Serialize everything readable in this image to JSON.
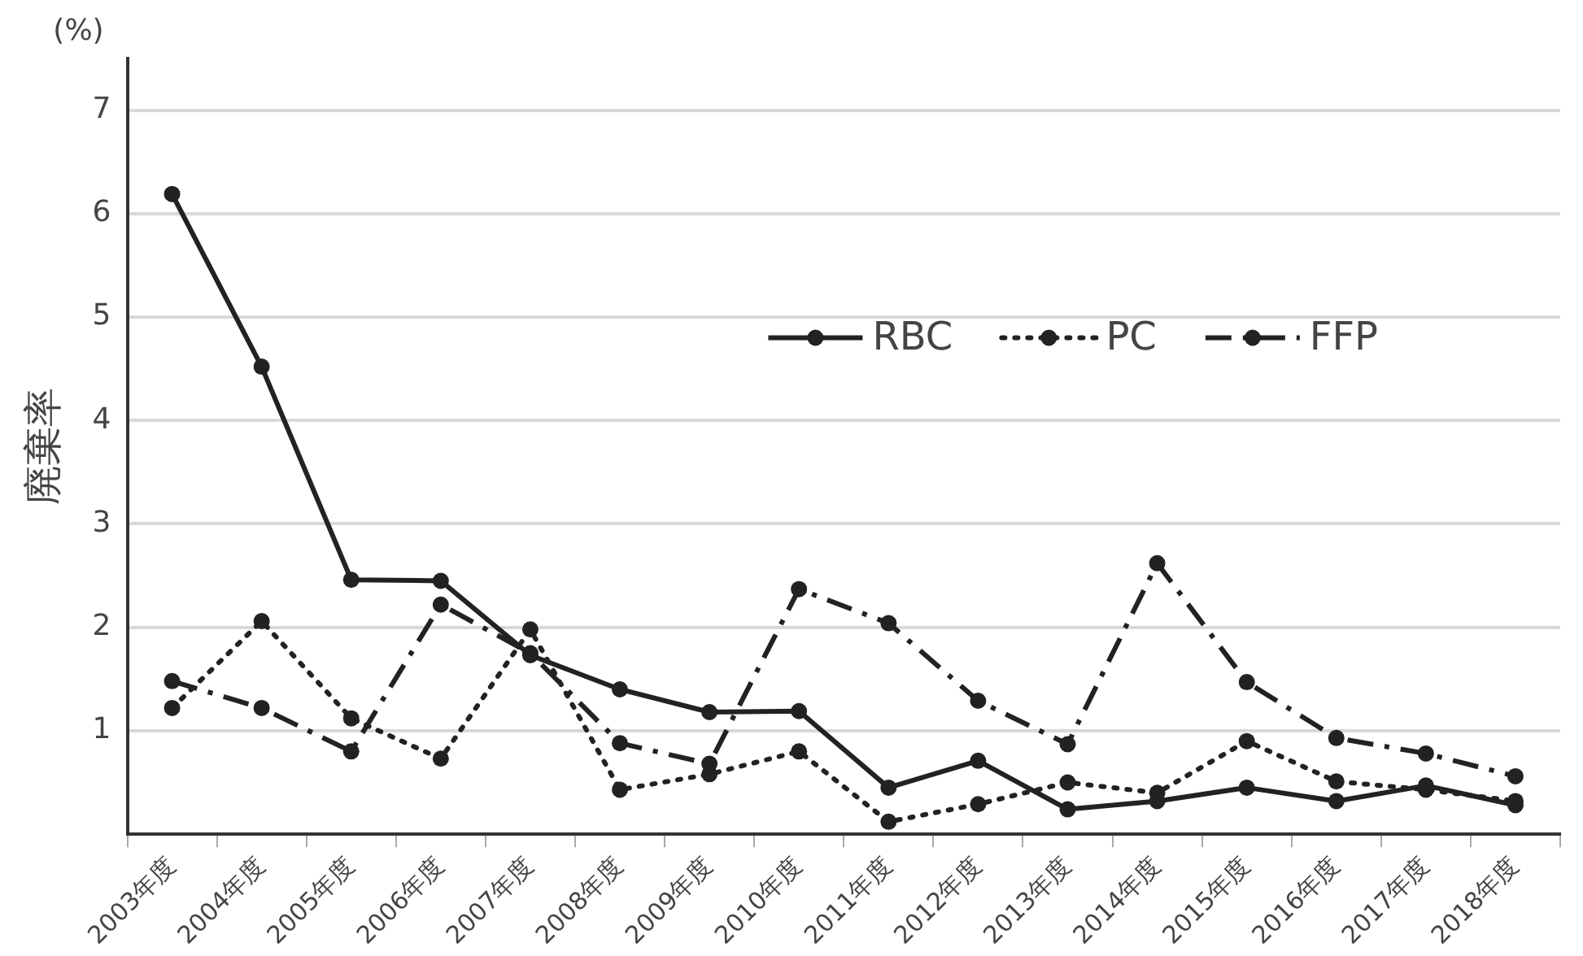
{
  "chart_data": {
    "type": "line",
    "ylabel": "廃棄率",
    "annotations": [
      "(%)"
    ],
    "categories": [
      "2003年度",
      "2004年度",
      "2005年度",
      "2006年度",
      "2007年度",
      "2008年度",
      "2009年度",
      "2010年度",
      "2011年度",
      "2012年度",
      "2013年度",
      "2014年度",
      "2015年度",
      "2016年度",
      "2017年度",
      "2018年度"
    ],
    "series": [
      {
        "name": "RBC",
        "color": "#222222",
        "line_style": "solid",
        "values": [
          6.19,
          4.52,
          2.46,
          2.45,
          1.73,
          1.4,
          1.18,
          1.19,
          0.45,
          0.71,
          0.24,
          0.32,
          0.45,
          0.32,
          0.47,
          0.28
        ]
      },
      {
        "name": "PC",
        "color": "#222222",
        "line_style": "dotted",
        "values": [
          1.22,
          2.06,
          1.12,
          0.73,
          1.98,
          0.43,
          0.58,
          0.8,
          0.12,
          0.29,
          0.5,
          0.4,
          0.9,
          0.51,
          0.43,
          0.32
        ]
      },
      {
        "name": "FFP",
        "color": "#222222",
        "line_style": "dashed",
        "values": [
          1.48,
          1.22,
          0.8,
          2.22,
          1.75,
          0.88,
          0.68,
          2.37,
          2.04,
          1.29,
          0.87,
          2.62,
          1.47,
          0.93,
          0.78,
          0.56
        ]
      }
    ],
    "ylim": [
      0,
      7.5
    ],
    "yticks": [
      {
        "value": 0,
        "label": null
      },
      1,
      2,
      3,
      4,
      5,
      6,
      7
    ],
    "grid": "y",
    "legend": "top right",
    "marker": "circle"
  }
}
